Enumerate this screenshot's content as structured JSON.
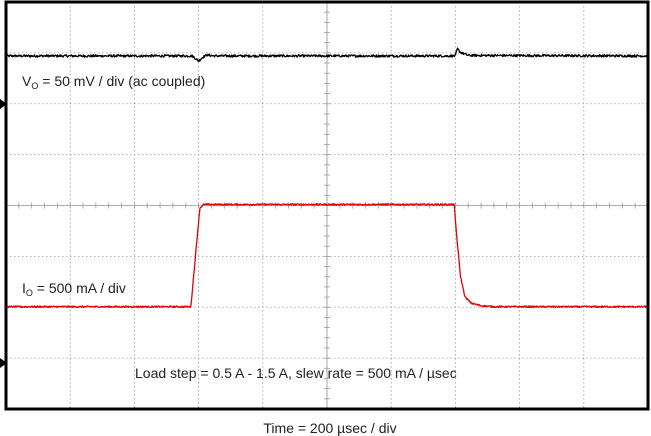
{
  "chart_data": {
    "type": "line",
    "title": "",
    "xlabel": "Time = 200 µsec / div",
    "ylabel": "",
    "grid": true,
    "divisions": {
      "x": 10,
      "y": 8
    },
    "xlim": [
      0,
      10
    ],
    "ylim": [
      0,
      8
    ],
    "colors": {
      "vout": "#000000",
      "iout": "#e00000",
      "grid": "#9a9a9a",
      "frame": "#000000"
    },
    "annotations": {
      "vout": {
        "prefix": "V",
        "sub": "O",
        "text": " = 50 mV / div (ac coupled)"
      },
      "iout": {
        "prefix": "I",
        "sub": "O",
        "text": " = 500 mA / div"
      },
      "load": "Load step = 0.5 A - 1.5 A, slew rate = 500 mA / µsec"
    },
    "series": [
      {
        "name": "V",
        "x": [
          0,
          2.9,
          3.0,
          3.05,
          3.12,
          3.25,
          7.0,
          7.03,
          7.08,
          7.2,
          10
        ],
        "y": [
          6.94,
          6.94,
          6.84,
          6.9,
          6.96,
          6.94,
          6.94,
          7.08,
          7.01,
          6.95,
          6.94
        ]
      },
      {
        "name": "I",
        "x": [
          0,
          2.88,
          2.95,
          3.02,
          3.08,
          3.15,
          6.98,
          7.02,
          7.08,
          7.15,
          7.25,
          7.4,
          7.6,
          10
        ],
        "y": [
          2.01,
          2.01,
          3.0,
          3.95,
          4.02,
          4.02,
          4.02,
          3.4,
          2.6,
          2.2,
          2.08,
          2.03,
          2.01,
          2.01
        ]
      }
    ]
  }
}
